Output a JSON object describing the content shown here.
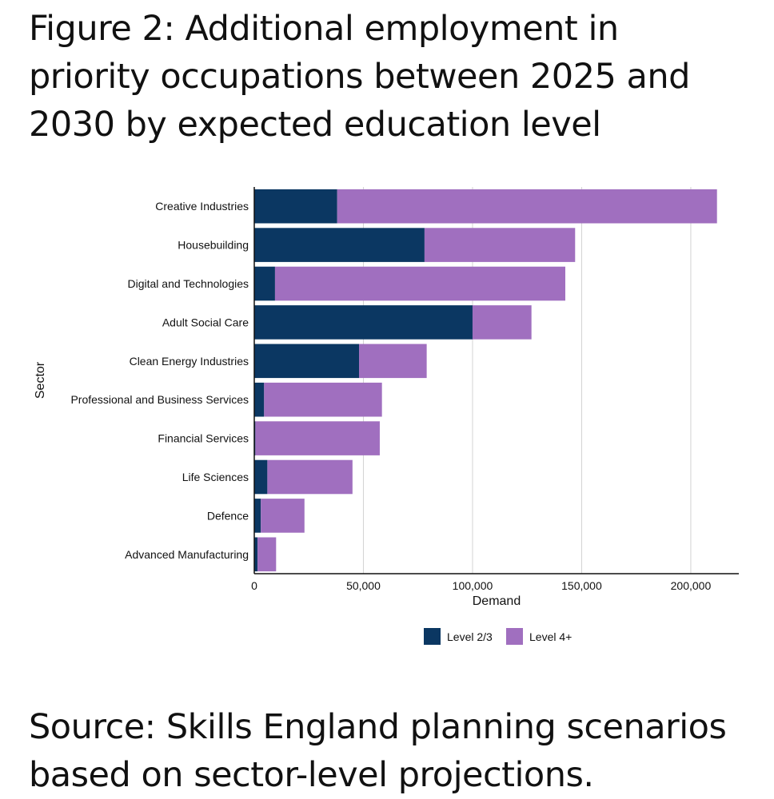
{
  "figure": {
    "title": "Figure 2: Additional employment in priority occupations between 2025 and 2030 by expected education level",
    "source": "Source: Skills England planning scenarios based on sector-level projections."
  },
  "chart_data": {
    "type": "bar",
    "orientation": "horizontal",
    "stacked": true,
    "categories": [
      "Creative Industries",
      "Housebuilding",
      "Digital and Technologies",
      "Adult Social Care",
      "Clean Energy Industries",
      "Professional and Business Services",
      "Financial Services",
      "Life Sciences",
      "Defence",
      "Advanced Manufacturing"
    ],
    "series": [
      {
        "name": "Level 2/3",
        "color": "#0b3762",
        "values": [
          38000,
          78000,
          9500,
          100000,
          48000,
          4500,
          500,
          6000,
          3000,
          1500
        ]
      },
      {
        "name": "Level 4+",
        "color": "#a06fbf",
        "values": [
          174000,
          69000,
          133000,
          27000,
          31000,
          54000,
          57000,
          39000,
          20000,
          8500
        ]
      }
    ],
    "xlabel": "Demand",
    "ylabel": "Sector",
    "xlim": [
      0,
      222000
    ],
    "xticks": [
      0,
      50000,
      100000,
      150000,
      200000
    ],
    "xtick_labels": [
      "0",
      "50,000",
      "100,000",
      "150,000",
      "200,000"
    ],
    "grid": "vertical",
    "legend_position": "bottom-center"
  }
}
